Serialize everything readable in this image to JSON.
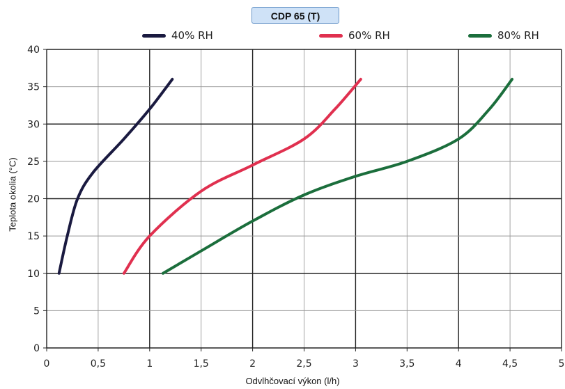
{
  "chart_data": {
    "type": "line",
    "title": "CDP 65 (T)",
    "xlabel": "Odvlhčovací výkon (l/h)",
    "ylabel": "Teplota okolia (°C)",
    "xlim": [
      0,
      5
    ],
    "ylim": [
      0,
      40
    ],
    "x_ticks": [
      "0",
      "0,5",
      "1",
      "1,5",
      "2",
      "2,5",
      "3",
      "3,5",
      "4",
      "4,5",
      "5"
    ],
    "y_ticks": [
      "0",
      "5",
      "10",
      "15",
      "20",
      "25",
      "30",
      "35",
      "40"
    ],
    "grid": true,
    "legend_position": "top",
    "series": [
      {
        "name": "40% RH",
        "color": "#1a1a40",
        "points": [
          [
            0.12,
            10
          ],
          [
            0.2,
            15
          ],
          [
            0.3,
            20
          ],
          [
            0.45,
            23.5
          ],
          [
            0.75,
            28
          ],
          [
            1.0,
            32
          ],
          [
            1.22,
            36
          ]
        ]
      },
      {
        "name": "60% RH",
        "color": "#e0304f",
        "points": [
          [
            0.75,
            10
          ],
          [
            1.0,
            15
          ],
          [
            1.5,
            21
          ],
          [
            2.0,
            24.5
          ],
          [
            2.5,
            28
          ],
          [
            2.8,
            32
          ],
          [
            3.05,
            36
          ]
        ]
      },
      {
        "name": "80% RH",
        "color": "#1b6e3c",
        "points": [
          [
            1.13,
            10
          ],
          [
            1.5,
            13
          ],
          [
            2.0,
            17
          ],
          [
            2.5,
            20.5
          ],
          [
            3.0,
            23
          ],
          [
            3.5,
            25
          ],
          [
            4.0,
            28
          ],
          [
            4.3,
            32
          ],
          [
            4.52,
            36
          ]
        ]
      }
    ]
  }
}
